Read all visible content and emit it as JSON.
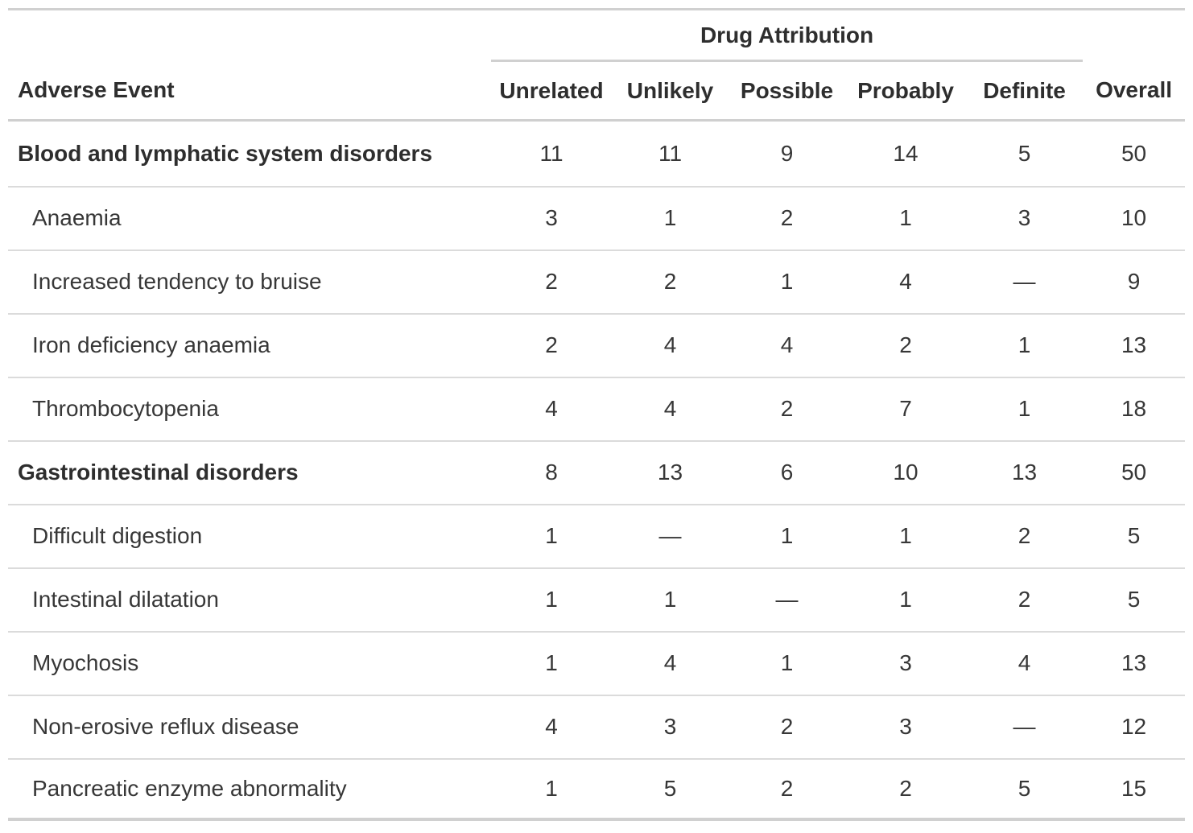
{
  "chart_data": {
    "type": "table",
    "spanner_label": "Drug Attribution",
    "stub_header": "Adverse Event",
    "attribution_columns": [
      "Unrelated",
      "Unlikely",
      "Possible",
      "Probably",
      "Definite"
    ],
    "overall_column": "Overall",
    "missing_value_glyph": "—",
    "rows": [
      {
        "label": "Blood and lymphatic system disorders",
        "group": true,
        "values": [
          "11",
          "11",
          "9",
          "14",
          "5",
          "50"
        ]
      },
      {
        "label": "Anaemia",
        "group": false,
        "values": [
          "3",
          "1",
          "2",
          "1",
          "3",
          "10"
        ]
      },
      {
        "label": "Increased tendency to bruise",
        "group": false,
        "values": [
          "2",
          "2",
          "1",
          "4",
          "—",
          "9"
        ]
      },
      {
        "label": "Iron deficiency anaemia",
        "group": false,
        "values": [
          "2",
          "4",
          "4",
          "2",
          "1",
          "13"
        ]
      },
      {
        "label": "Thrombocytopenia",
        "group": false,
        "values": [
          "4",
          "4",
          "2",
          "7",
          "1",
          "18"
        ]
      },
      {
        "label": "Gastrointestinal disorders",
        "group": true,
        "values": [
          "8",
          "13",
          "6",
          "10",
          "13",
          "50"
        ]
      },
      {
        "label": "Difficult digestion",
        "group": false,
        "values": [
          "1",
          "—",
          "1",
          "1",
          "2",
          "5"
        ]
      },
      {
        "label": "Intestinal dilatation",
        "group": false,
        "values": [
          "1",
          "1",
          "—",
          "1",
          "2",
          "5"
        ]
      },
      {
        "label": "Myochosis",
        "group": false,
        "values": [
          "1",
          "4",
          "1",
          "3",
          "4",
          "13"
        ]
      },
      {
        "label": "Non-erosive reflux disease",
        "group": false,
        "values": [
          "4",
          "3",
          "2",
          "3",
          "—",
          "12"
        ]
      },
      {
        "label": "Pancreatic enzyme abnormality",
        "group": false,
        "values": [
          "1",
          "5",
          "2",
          "2",
          "5",
          "15"
        ]
      }
    ],
    "layout_hints": {
      "grid": "horizontal-rules-only",
      "numeric_alignment": "center",
      "spanner_covers": "attribution_columns_only"
    },
    "colors": {
      "text": "#333333",
      "heading_text": "#2e2e2e",
      "border_strong": "#d0d0d0",
      "border_light": "#dbdbdb",
      "background": "#ffffff"
    }
  }
}
